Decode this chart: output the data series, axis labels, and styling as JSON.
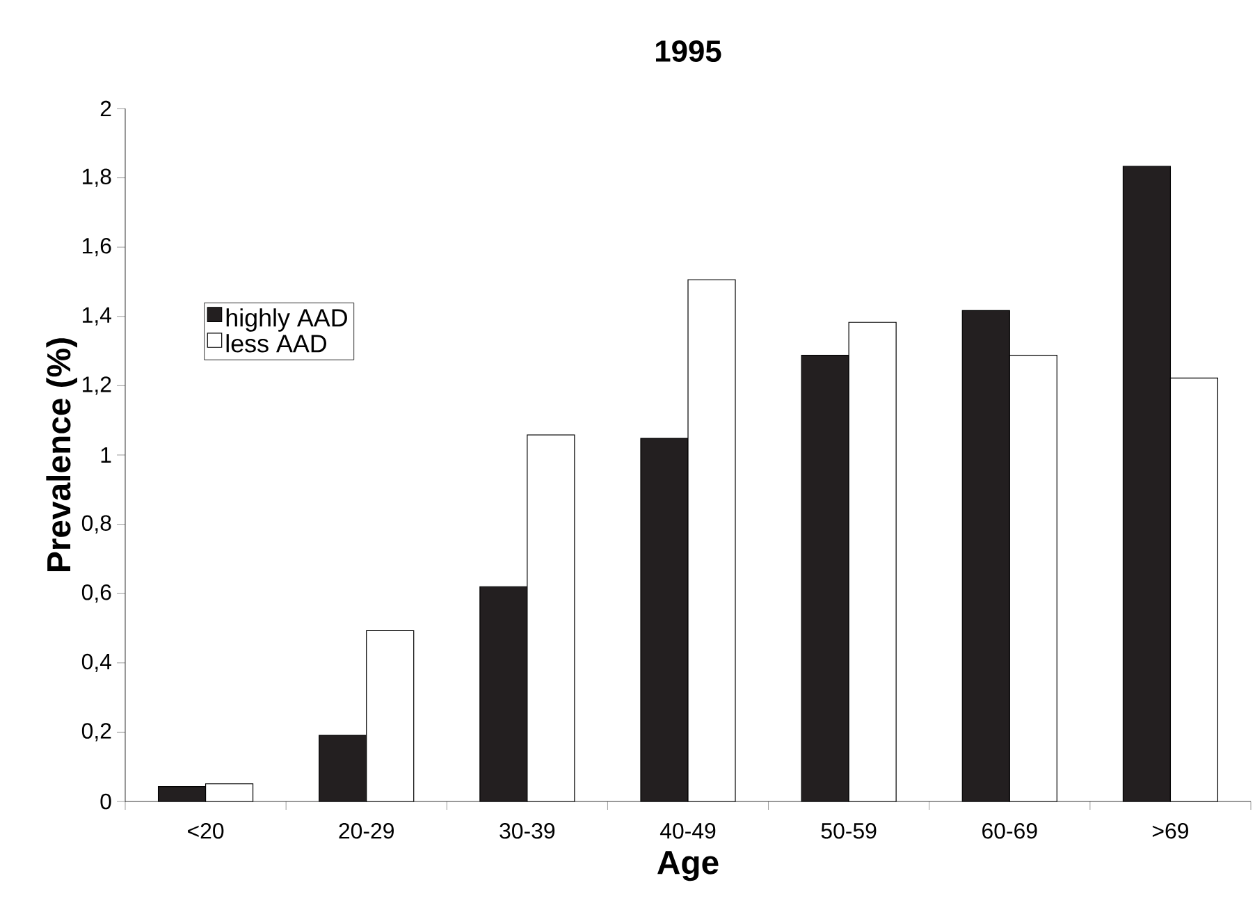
{
  "chart_data": {
    "type": "bar",
    "title": "1995",
    "xlabel": "Age",
    "ylabel": "Prevalence (%)",
    "categories": [
      "<20",
      "20-29",
      "30-39",
      "40-49",
      "50-59",
      "60-69",
      ">69"
    ],
    "series": [
      {
        "name": "highly AAD",
        "color": "#231f20",
        "values": [
          0.043,
          0.191,
          0.62,
          1.048,
          1.288,
          1.417,
          1.833
        ]
      },
      {
        "name": "less AAD",
        "color": "#ffffff",
        "values": [
          0.051,
          0.493,
          1.058,
          1.506,
          1.383,
          1.288,
          1.222
        ]
      }
    ],
    "ylim": [
      0,
      2
    ],
    "yticks": [
      0,
      {
        "value": 0.2,
        "label": "0,2"
      },
      {
        "value": 0.4,
        "label": "0,4"
      },
      {
        "value": 0.6,
        "label": "0,6"
      },
      {
        "value": 0.8,
        "label": "0,8"
      },
      1,
      {
        "value": 1.2,
        "label": "1,2"
      },
      {
        "value": 1.4,
        "label": "1,4"
      },
      {
        "value": 1.6,
        "label": "1,6"
      },
      {
        "value": 1.8,
        "label": "1,8"
      },
      2
    ],
    "grid": false,
    "legend": "left"
  }
}
